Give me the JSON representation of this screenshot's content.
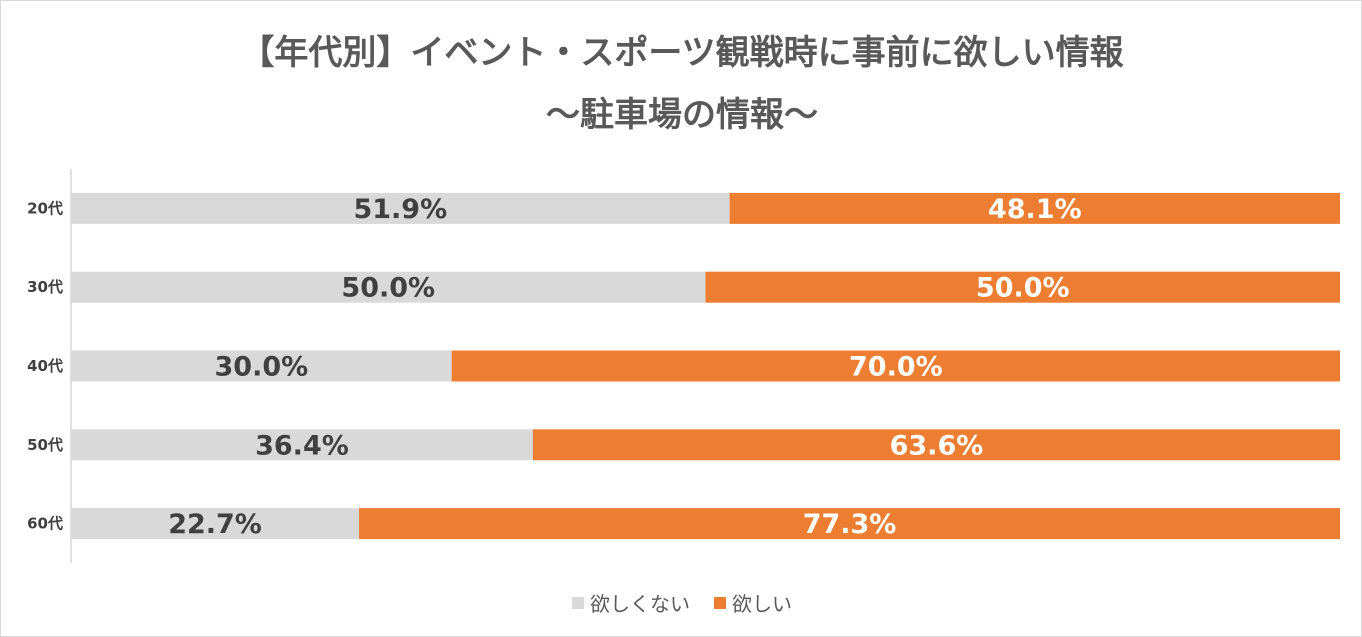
{
  "chart_data": {
    "type": "bar",
    "orientation": "horizontal",
    "stacked": true,
    "title": "【年代別】イベント・スポーツ観戦時に事前に欲しい情報",
    "subtitle": "～駐車場の情報～",
    "categories": [
      "20代",
      "30代",
      "40代",
      "50代",
      "60代"
    ],
    "series": [
      {
        "name": "欲しくない",
        "color": "#d9d9d9",
        "label_color": "#404040",
        "values": [
          51.9,
          50.0,
          30.0,
          36.4,
          22.7
        ],
        "labels": [
          "51.9%",
          "50.0%",
          "30.0%",
          "36.4%",
          "22.7%"
        ]
      },
      {
        "name": "欲しい",
        "color": "#ed7d31",
        "label_color": "#ffffff",
        "values": [
          48.1,
          50.0,
          70.0,
          63.6,
          77.3
        ],
        "labels": [
          "48.1%",
          "50.0%",
          "70.0%",
          "63.6%",
          "77.3%"
        ]
      }
    ],
    "xlim": [
      0,
      100
    ],
    "legend_position": "bottom-center",
    "grid": false
  }
}
